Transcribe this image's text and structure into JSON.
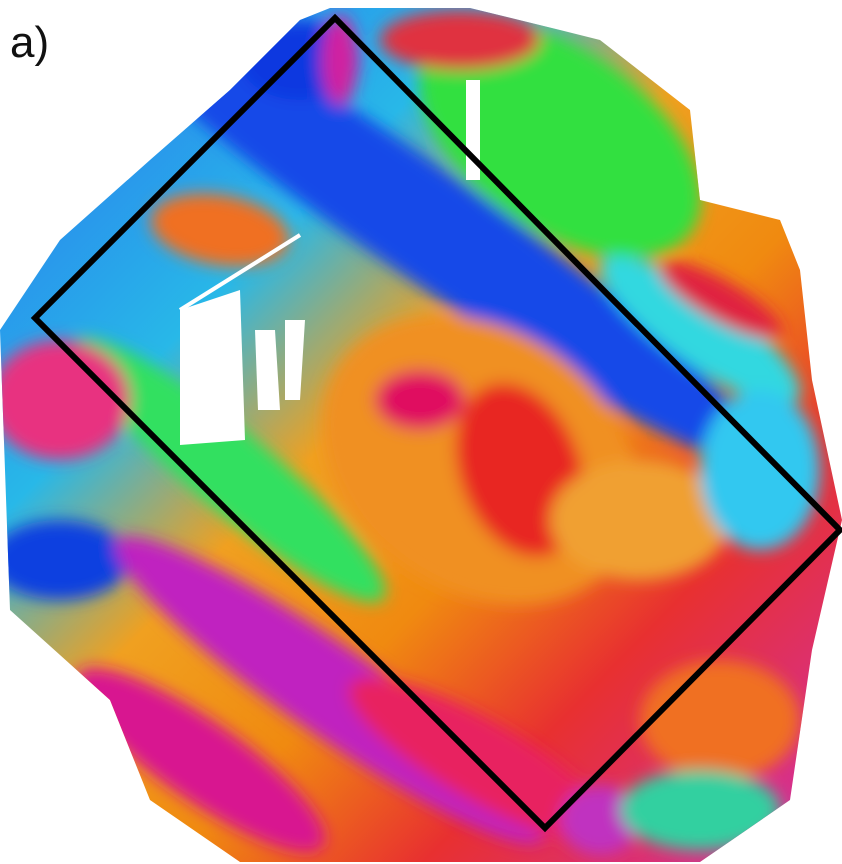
{
  "panel_label": "a)"
}
